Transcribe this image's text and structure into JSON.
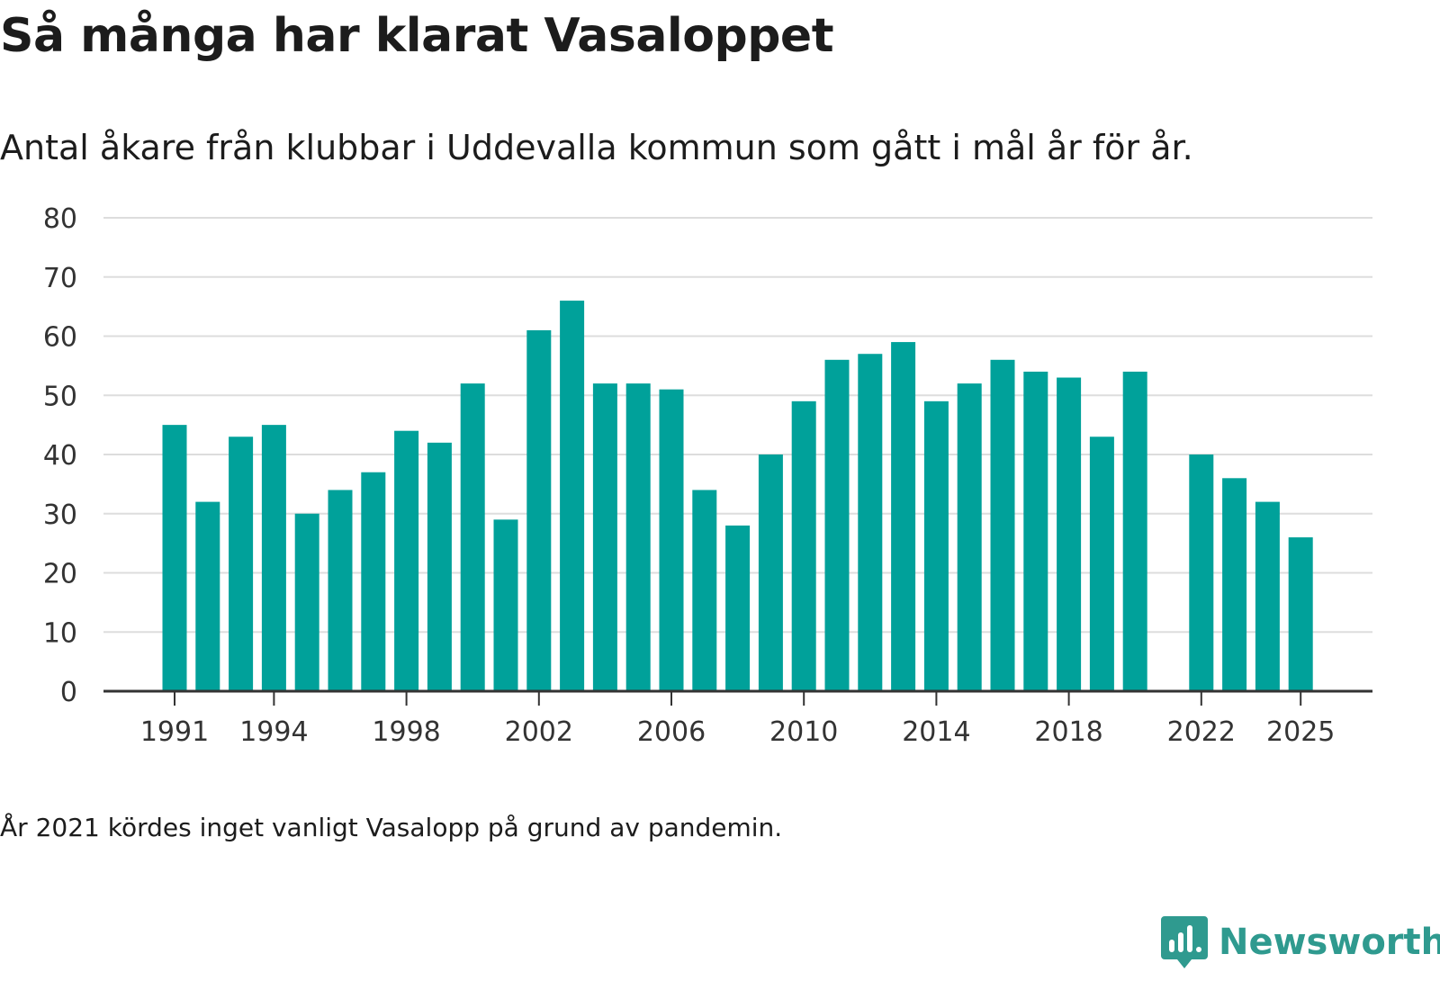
{
  "header": {
    "title": "Så många har klarat Vasaloppet",
    "subtitle": "Antal åkare från klubbar i Uddevalla kommun som gått i mål år för år."
  },
  "footer": {
    "note": "År 2021 kördes inget vanligt Vasalopp på grund av pandemin.",
    "brand": "Newsworthy",
    "brand_icon": "newsworthy-logo-icon",
    "brand_color": "#2f9a8f"
  },
  "chart_data": {
    "type": "bar",
    "title": "Så många har klarat Vasaloppet",
    "subtitle": "Antal åkare från klubbar i Uddevalla kommun som gått i mål år för år.",
    "xlabel": "",
    "ylabel": "",
    "ylim": [
      0,
      80
    ],
    "yticks": [
      0,
      10,
      20,
      30,
      40,
      50,
      60,
      70,
      80
    ],
    "grid": true,
    "bar_color": "#00a19a",
    "categories": [
      1991,
      1992,
      1993,
      1994,
      1995,
      1996,
      1997,
      1998,
      1999,
      2000,
      2001,
      2002,
      2003,
      2004,
      2005,
      2006,
      2007,
      2008,
      2009,
      2010,
      2011,
      2012,
      2013,
      2014,
      2015,
      2016,
      2017,
      2018,
      2019,
      2020,
      2021,
      2022,
      2023,
      2024,
      2025
    ],
    "values": [
      45,
      32,
      43,
      45,
      30,
      34,
      37,
      44,
      42,
      52,
      29,
      61,
      66,
      52,
      52,
      51,
      34,
      28,
      40,
      49,
      56,
      57,
      59,
      49,
      52,
      56,
      54,
      53,
      43,
      54,
      null,
      40,
      36,
      32,
      26
    ],
    "xtick_labels": [
      "1991",
      "1994",
      "1998",
      "2002",
      "2006",
      "2010",
      "2014",
      "2018",
      "2022",
      "2025"
    ]
  }
}
